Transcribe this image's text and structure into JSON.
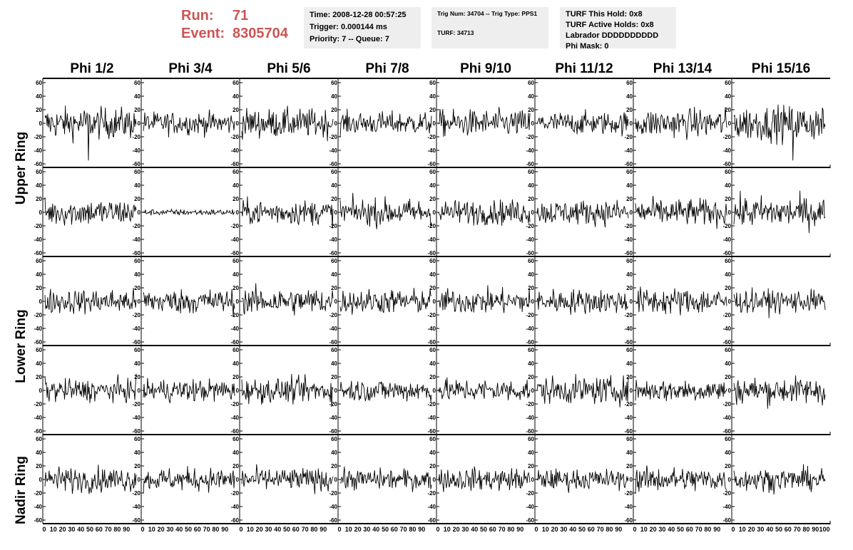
{
  "run": {
    "run_label": "Run:",
    "run_value": "71",
    "event_label": "Event:",
    "event_value": "8305704"
  },
  "time_box": {
    "time": "Time: 2008-12-28 00:57:25",
    "trigger": "Trigger: 0.000144 ms",
    "priority": "Priority: 7 -- Queue: 7"
  },
  "trig_box": {
    "trig": "Trig Num: 34704 -- Trig Type: PPS1",
    "turf": "TURF: 34713"
  },
  "turf_box": {
    "this_hold": "TURF This Hold: 0x8",
    "active_holds": "TURF Active Holds: 0x8",
    "labrador": "Labrador DDDDDDDDDD",
    "phi_mask": "Phi Mask: 0"
  },
  "colors": {
    "run_text": "#cc5555",
    "info_box_bg": "#eeeeee",
    "trace": "#000000"
  },
  "phi_headers": [
    "Phi 1/2",
    "Phi 3/4",
    "Phi 5/6",
    "Phi 7/8",
    "Phi 9/10",
    "Phi 11/12",
    "Phi 13/14",
    "Phi 15/16"
  ],
  "ring_labels": {
    "upper": "Upper Ring",
    "lower": "Lower Ring",
    "nadir": "Nadir Ring"
  },
  "chart_data": {
    "type": "line",
    "grid": false,
    "layout": "5 rows x 8 columns of waveform panels",
    "ylim": [
      -60,
      60
    ],
    "xlim": [
      0,
      100
    ],
    "y_ticks": [
      "60",
      "40",
      "20",
      "0",
      "-20",
      "-40",
      "-60"
    ],
    "x_ticks": [
      "0",
      "10",
      "20",
      "30",
      "40",
      "50",
      "60",
      "70",
      "80",
      "90",
      "100"
    ],
    "amplitude_by_row": [
      [
        15,
        11,
        14,
        11,
        13,
        11,
        14,
        17
      ],
      [
        13,
        3,
        12,
        13,
        12,
        12,
        13,
        15
      ],
      [
        12,
        12,
        13,
        12,
        12,
        12,
        13,
        11
      ],
      [
        11,
        11,
        12,
        11,
        11,
        13,
        11,
        13
      ],
      [
        12,
        11,
        11,
        10,
        11,
        10,
        12,
        11
      ]
    ],
    "spike_value": -55
  }
}
